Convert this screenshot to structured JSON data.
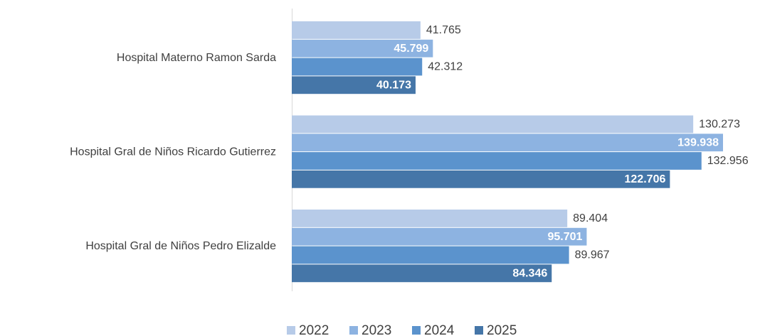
{
  "chart_data": {
    "type": "bar",
    "orientation": "horizontal",
    "categories": [
      "Hospital Materno Ramon Sarda",
      "Hospital Gral de Niños Ricardo Gutierrez",
      "Hospital Gral de Niños Pedro Elizalde"
    ],
    "series": [
      {
        "name": "2022",
        "color": "#b7cbe8",
        "values": [
          41765,
          130273,
          89404
        ],
        "value_labels": [
          "41.765",
          "130.273",
          "89.404"
        ]
      },
      {
        "name": "2023",
        "color": "#8db3e1",
        "values": [
          45799,
          139938,
          95701
        ],
        "value_labels": [
          "45.799",
          "139.938",
          "95.701"
        ]
      },
      {
        "name": "2024",
        "color": "#5b93cd",
        "values": [
          42312,
          132956,
          89967
        ],
        "value_labels": [
          "42.312",
          "132.956",
          "89.967"
        ]
      },
      {
        "name": "2025",
        "color": "#4576a8",
        "values": [
          40173,
          122706,
          84346
        ],
        "value_labels": [
          "40.173",
          "122.706",
          "84.346"
        ]
      }
    ],
    "legend": "bottom"
  }
}
